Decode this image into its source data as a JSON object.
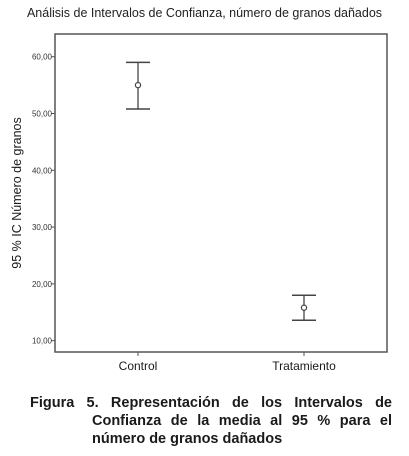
{
  "chart_data": {
    "type": "errorbar",
    "title": "Análisis de Intervalos de Confianza, número de granos dañados",
    "xlabel": "",
    "ylabel": "95 % IC Número de granos",
    "categories": [
      "Control",
      "Tratamiento"
    ],
    "series": [
      {
        "mean": [
          55.0,
          15.8
        ],
        "lower": [
          50.8,
          13.6
        ],
        "upper": [
          59.0,
          18.0
        ]
      }
    ],
    "ylim": [
      8,
      64
    ],
    "yticks": [
      10,
      20,
      30,
      40,
      50,
      60
    ],
    "ytick_labels": [
      "10,00",
      "20,00",
      "30,00",
      "40,00",
      "50,00",
      "60,00"
    ],
    "grid": false
  },
  "caption": {
    "line1": "Figura 5. Representación de los Intervalos de",
    "line2": "Confianza de la media al 95 % para el",
    "line3": "número de granos dañados"
  }
}
